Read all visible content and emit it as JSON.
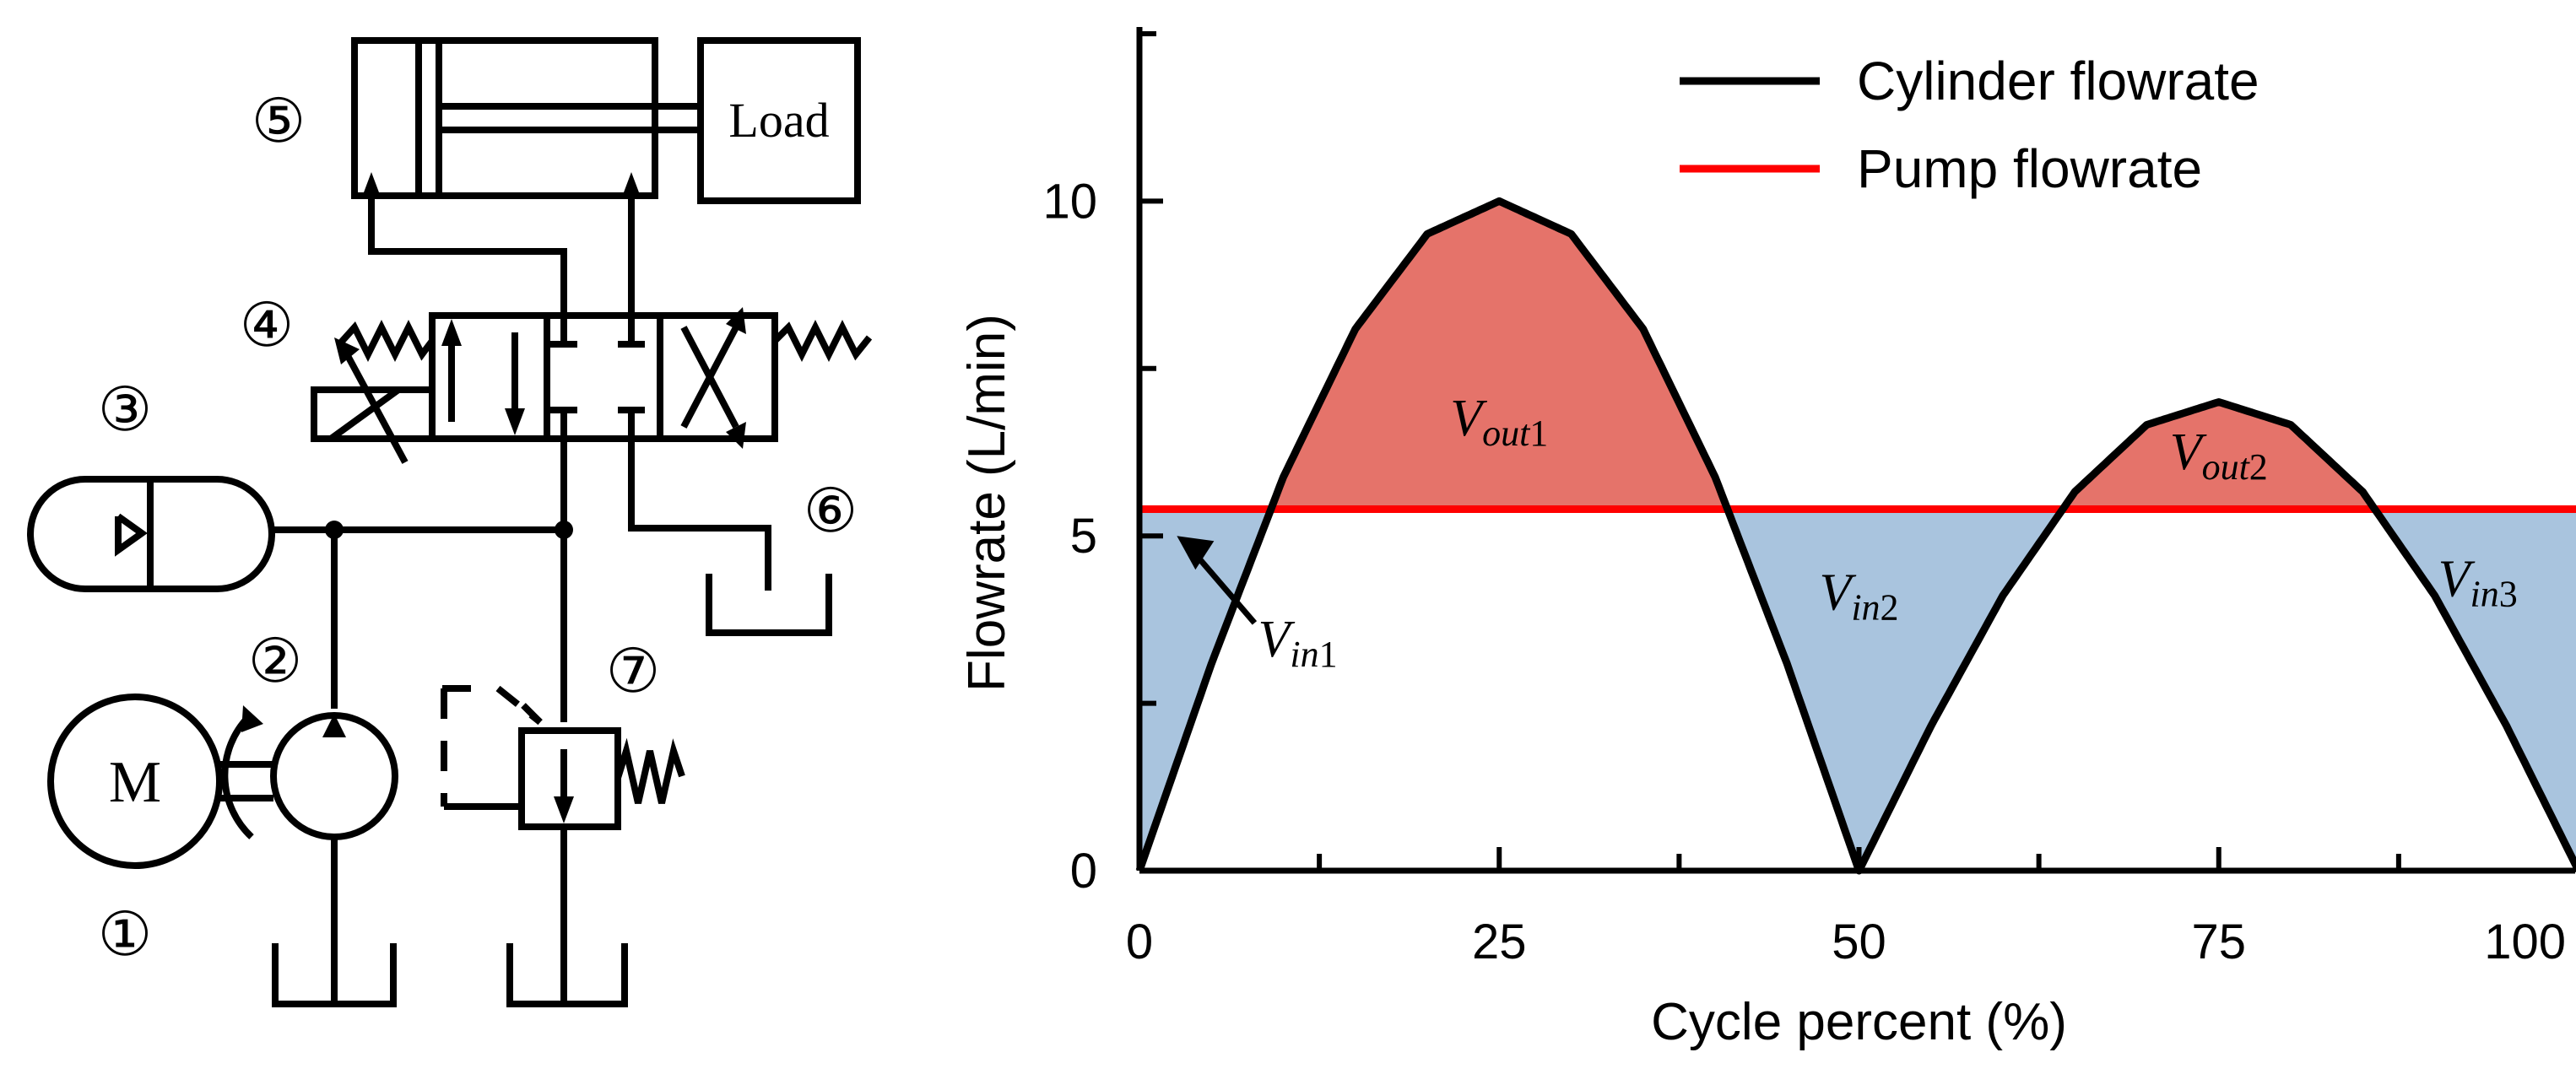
{
  "schematic": {
    "labels": {
      "motor": "①",
      "pump": "②",
      "accumulator": "③",
      "valve": "④",
      "cylinder": "⑤",
      "tank": "⑥",
      "relief": "⑦"
    },
    "motor_letter": "M",
    "load_label": "Load"
  },
  "chart_data": {
    "type": "area",
    "title": "",
    "xlabel": "Cycle percent (%)",
    "ylabel": "Flowrate (L/min)",
    "xlim": [
      0,
      100
    ],
    "ylim": [
      0,
      12.5
    ],
    "xticks": [
      "0",
      "25",
      "50",
      "75",
      "100"
    ],
    "yticks": [
      "0",
      "5",
      "10"
    ],
    "series": [
      {
        "name": "Cylinder flowrate",
        "color": "#000000",
        "description": "|sin| shaped: peak 10 at 25%, zero at 50%, peak 7 at 75%, zero at 100%",
        "x": [
          0,
          5,
          10,
          15,
          20,
          25,
          30,
          35,
          40,
          45,
          50,
          55,
          60,
          65,
          70,
          75,
          80,
          85,
          90,
          95,
          100
        ],
        "y": [
          0,
          3.09,
          5.88,
          8.09,
          9.51,
          10,
          9.51,
          8.09,
          5.88,
          3.09,
          0,
          2.16,
          4.11,
          5.66,
          6.66,
          7,
          6.66,
          5.66,
          4.11,
          2.16,
          0
        ]
      },
      {
        "name": "Pump flowrate",
        "color": "#ff0000",
        "x": [
          0,
          100
        ],
        "y": [
          5.4,
          5.4
        ]
      }
    ],
    "regions": [
      {
        "main": "V",
        "sub": "out",
        "num": "1",
        "color": "#e5736a"
      },
      {
        "main": "V",
        "sub": "out",
        "num": "2",
        "color": "#e5736a"
      },
      {
        "main": "V",
        "sub": "in",
        "num": "1",
        "color": "#a9c4de"
      },
      {
        "main": "V",
        "sub": "in",
        "num": "2",
        "color": "#a9c4de"
      },
      {
        "main": "V",
        "sub": "in",
        "num": "3",
        "color": "#a9c4de"
      }
    ],
    "legend": {
      "placement": "top-right",
      "entries": [
        "Cylinder flowrate",
        "Pump flowrate"
      ]
    }
  }
}
